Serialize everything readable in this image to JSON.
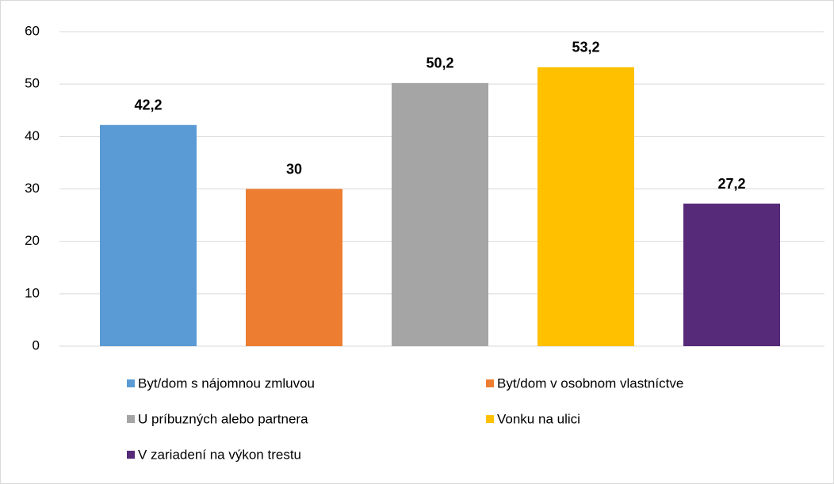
{
  "chart_data": {
    "type": "bar",
    "series": [
      {
        "name": "Byt/dom s nájomnou zmluvou",
        "color": "#5b9bd5",
        "values": [
          42.2
        ],
        "value_labels": [
          "42,2"
        ]
      },
      {
        "name": "Byt/dom v osobnom vlastníctve",
        "color": "#ed7d31",
        "values": [
          30
        ]
      },
      {
        "name": "U príbuzných alebo partnera",
        "color": "#a5a5a5",
        "values": [
          50.2
        ],
        "value_labels": [
          "50,2"
        ]
      },
      {
        "name": "Vonku na ulici",
        "color": "#ffc000",
        "values": [
          53.2
        ],
        "value_labels": [
          "53,2"
        ]
      },
      {
        "name": "V zariadení na výkon trestu",
        "color": "#562a78",
        "values": [
          27.2
        ],
        "value_labels": [
          "27,2"
        ]
      }
    ],
    "ylim": [
      0,
      60
    ],
    "yticks": [
      0,
      10,
      20,
      30,
      40,
      50,
      60
    ],
    "grid": true,
    "legend": "bottom"
  }
}
